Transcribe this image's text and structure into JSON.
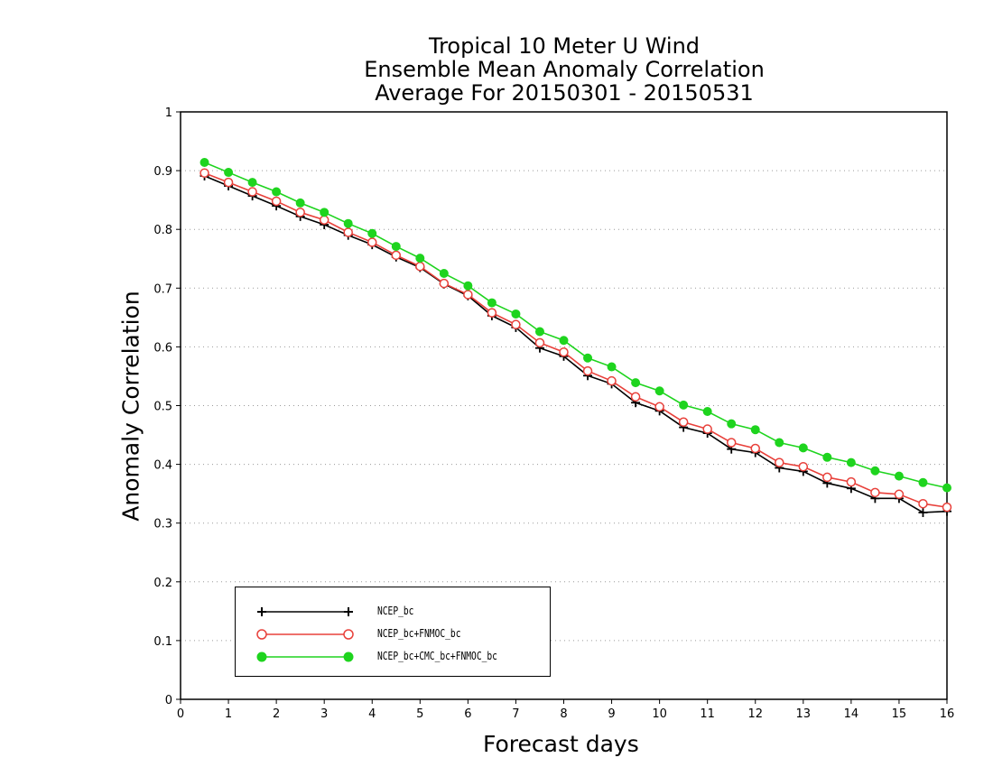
{
  "title": {
    "line1": "Tropical 10 Meter U Wind",
    "line2": "Ensemble Mean Anomaly Correlation",
    "line3": "Average For 20150301 - 20150531"
  },
  "chart_data": {
    "type": "line",
    "xlabel": "Forecast days",
    "ylabel": "Anomaly Correlation",
    "xlim": [
      0,
      16
    ],
    "ylim": [
      0,
      1
    ],
    "xticks": [
      "0",
      "1",
      "2",
      "3",
      "4",
      "5",
      "6",
      "7",
      "8",
      "9",
      "10",
      "11",
      "12",
      "13",
      "14",
      "15",
      "16"
    ],
    "yticks": [
      "0",
      "0.1",
      "0.2",
      "0.3",
      "0.4",
      "0.5",
      "0.6",
      "0.7",
      "0.8",
      "0.9",
      "1"
    ],
    "grid": "horizontal dotted",
    "legend_position": "lower-left",
    "x": [
      0.5,
      1,
      1.5,
      2,
      2.5,
      3,
      3.5,
      4,
      4.5,
      5,
      5.5,
      6,
      6.5,
      7,
      7.5,
      8,
      8.5,
      9,
      9.5,
      10,
      10.5,
      11,
      11.5,
      12,
      12.5,
      13,
      13.5,
      14,
      14.5,
      15,
      15.5,
      16
    ],
    "series": [
      {
        "name": "NCEP_bc",
        "color": "#000000",
        "marker": "plus",
        "values": [
          0.891,
          0.874,
          0.857,
          0.84,
          0.822,
          0.808,
          0.79,
          0.774,
          0.753,
          0.735,
          0.707,
          0.687,
          0.653,
          0.633,
          0.598,
          0.584,
          0.551,
          0.537,
          0.505,
          0.491,
          0.463,
          0.453,
          0.426,
          0.42,
          0.394,
          0.388,
          0.368,
          0.359,
          0.342,
          0.342,
          0.318,
          0.32
        ]
      },
      {
        "name": "NCEP_bc+FNMOC_bc",
        "color": "#e8403a",
        "marker": "open-circle",
        "values": [
          0.896,
          0.88,
          0.864,
          0.848,
          0.829,
          0.816,
          0.795,
          0.778,
          0.756,
          0.737,
          0.708,
          0.689,
          0.658,
          0.638,
          0.607,
          0.591,
          0.559,
          0.542,
          0.515,
          0.498,
          0.472,
          0.46,
          0.437,
          0.427,
          0.403,
          0.396,
          0.378,
          0.37,
          0.352,
          0.349,
          0.333,
          0.327
        ]
      },
      {
        "name": "NCEP_bc+CMC_bc+FNMOC_bc",
        "color": "#1ed41e",
        "marker": "filled-circle",
        "values": [
          0.914,
          0.897,
          0.88,
          0.864,
          0.845,
          0.829,
          0.81,
          0.793,
          0.771,
          0.751,
          0.725,
          0.704,
          0.675,
          0.656,
          0.626,
          0.611,
          0.581,
          0.566,
          0.539,
          0.525,
          0.501,
          0.49,
          0.469,
          0.459,
          0.437,
          0.428,
          0.412,
          0.403,
          0.389,
          0.38,
          0.369,
          0.36
        ]
      }
    ]
  }
}
